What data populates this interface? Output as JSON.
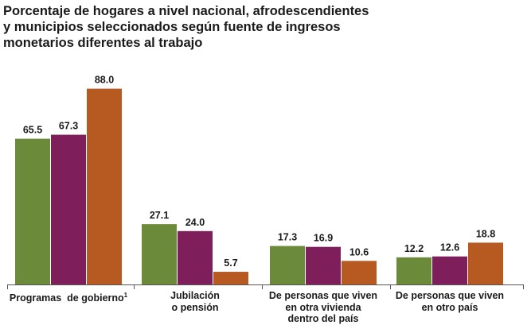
{
  "title_lines": [
    "Porcentaje de hogares a nivel nacional, afrodescendientes",
    "y municipios seleccionados según fuente de ingresos",
    "monetarios diferentes al trabajo"
  ],
  "colors": {
    "series": [
      "#6b8a3a",
      "#7e1e5a",
      "#b65a22"
    ],
    "axis": "#555555"
  },
  "chart_data": {
    "type": "bar",
    "categories": [
      "Programas de gobierno",
      "Jubilación o pensión",
      "De personas que viven en otra vivienda dentro del país",
      "De personas que viven en otro país"
    ],
    "category_label_lines": [
      [
        "Programas  de gobierno"
      ],
      [
        "Jubilación",
        "o pensión"
      ],
      [
        "De personas que viven",
        "en otra vivienda",
        "dentro del país"
      ],
      [
        "De personas que viven",
        "en otro país"
      ]
    ],
    "category_footnotes": [
      "1",
      "",
      "",
      ""
    ],
    "series": [
      {
        "values": [
          65.5,
          27.1,
          17.3,
          12.2
        ],
        "labels": [
          "65.5",
          "27.1",
          "17.3",
          "12.2"
        ]
      },
      {
        "values": [
          67.3,
          24.0,
          16.9,
          12.6
        ],
        "labels": [
          "67.3",
          "24.0",
          "16.9",
          "12.6"
        ]
      },
      {
        "values": [
          88.0,
          5.7,
          10.6,
          18.8
        ],
        "labels": [
          "88.0",
          "5.7",
          "10.6",
          "18.8"
        ]
      }
    ],
    "ylim": [
      0,
      100
    ],
    "xlabel": "",
    "ylabel": "",
    "legend": "none",
    "grid": false
  }
}
